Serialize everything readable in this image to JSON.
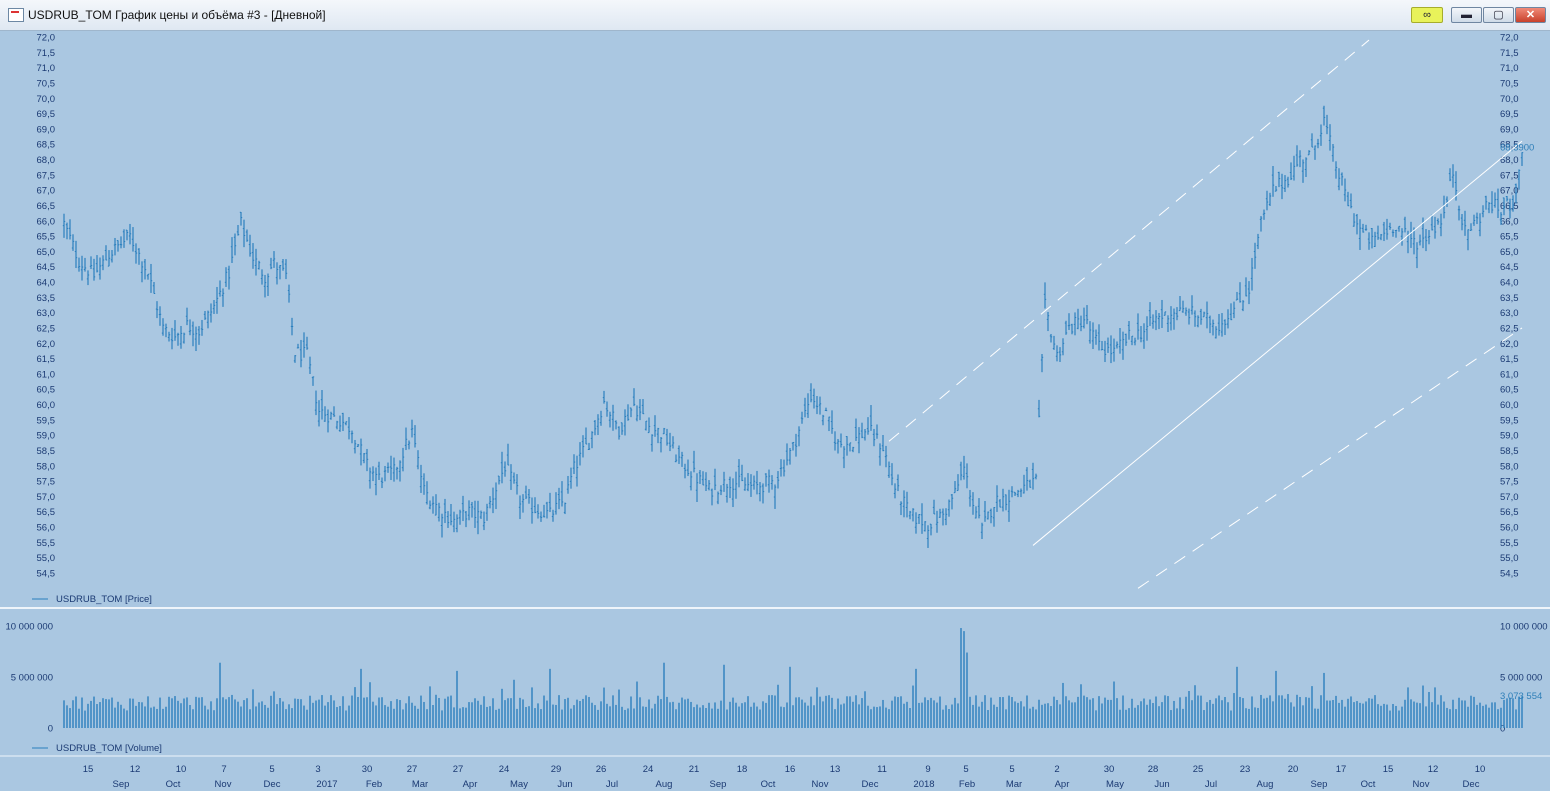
{
  "window": {
    "title": "USDRUB_TOM График цены и объёма #3 - [Дневной]",
    "icons": {
      "link": "link-icon",
      "minimize": "minimize-icon",
      "maximize": "maximize-icon",
      "close": "close-icon"
    }
  },
  "colors": {
    "background": "#aac7e1",
    "series": "#2b7fbd",
    "axis_text": "#1b3a73",
    "channel": "#ffffff"
  },
  "chart_data": [
    {
      "type": "bar",
      "subtype": "ohlc",
      "legend": "USDRUB_TOM [Price]",
      "legend_position": "bottom-left",
      "current_value_label": "68,3900",
      "ylim": [
        54.5,
        72.0
      ],
      "y_ticks": [
        "72,0",
        "71,5",
        "71,0",
        "70,5",
        "70,0",
        "69,5",
        "69,0",
        "68,5",
        "68,0",
        "67,5",
        "67,0",
        "66,5",
        "66,0",
        "65,5",
        "65,0",
        "64,5",
        "64,0",
        "63,5",
        "63,0",
        "62,5",
        "62,0",
        "61,5",
        "61,0",
        "60,5",
        "60,0",
        "59,5",
        "59,0",
        "58,5",
        "58,0",
        "57,5",
        "57,0",
        "56,5",
        "56,0",
        "55,5",
        "55,0",
        "54,5"
      ],
      "grid": false,
      "close_path": [
        [
          0,
          65.9
        ],
        [
          5,
          64.7
        ],
        [
          10,
          64.2
        ],
        [
          15,
          64.9
        ],
        [
          22,
          65.5
        ],
        [
          28,
          64.3
        ],
        [
          33,
          62.5
        ],
        [
          37,
          62.2
        ],
        [
          41,
          62.6
        ],
        [
          45,
          62.4
        ],
        [
          50,
          63.2
        ],
        [
          55,
          64.3
        ],
        [
          59,
          65.9
        ],
        [
          63,
          64.8
        ],
        [
          67,
          64.2
        ],
        [
          70,
          64.6
        ],
        [
          74,
          64.2
        ],
        [
          77,
          61.7
        ],
        [
          81,
          61.6
        ],
        [
          85,
          59.8
        ],
        [
          92,
          59.5
        ],
        [
          96,
          59.2
        ],
        [
          101,
          58.0
        ],
        [
          105,
          57.6
        ],
        [
          110,
          57.8
        ],
        [
          116,
          59.1
        ],
        [
          120,
          57.2
        ],
        [
          125,
          56.6
        ],
        [
          130,
          56.2
        ],
        [
          135,
          56.5
        ],
        [
          140,
          56.3
        ],
        [
          147,
          58.0
        ],
        [
          152,
          56.9
        ],
        [
          157,
          56.6
        ],
        [
          162,
          56.4
        ],
        [
          167,
          56.9
        ],
        [
          170,
          57.9
        ],
        [
          175,
          58.8
        ],
        [
          180,
          60.1
        ],
        [
          185,
          59.2
        ],
        [
          190,
          60.0
        ],
        [
          195,
          59.3
        ],
        [
          200,
          59.0
        ],
        [
          205,
          58.2
        ],
        [
          210,
          57.7
        ],
        [
          215,
          57.2
        ],
        [
          222,
          57.5
        ],
        [
          230,
          57.3
        ],
        [
          237,
          57.5
        ],
        [
          243,
          58.6
        ],
        [
          249,
          60.3
        ],
        [
          254,
          59.6
        ],
        [
          258,
          58.7
        ],
        [
          263,
          58.8
        ],
        [
          268,
          59.2
        ],
        [
          273,
          58.6
        ],
        [
          277,
          57.3
        ],
        [
          282,
          56.4
        ],
        [
          288,
          56.1
        ],
        [
          293,
          56.4
        ],
        [
          297,
          57.1
        ],
        [
          300,
          57.9
        ],
        [
          303,
          56.8
        ],
        [
          306,
          55.9
        ],
        [
          310,
          56.8
        ],
        [
          315,
          57.0
        ],
        [
          320,
          57.3
        ],
        [
          324,
          57.5
        ],
        [
          327,
          63.2
        ],
        [
          331,
          61.6
        ],
        [
          335,
          62.5
        ],
        [
          340,
          62.8
        ],
        [
          345,
          61.9
        ],
        [
          350,
          61.7
        ],
        [
          355,
          62.2
        ],
        [
          360,
          62.4
        ],
        [
          364,
          62.8
        ],
        [
          369,
          63.0
        ],
        [
          375,
          63.0
        ],
        [
          380,
          62.8
        ],
        [
          385,
          62.6
        ],
        [
          390,
          63.1
        ],
        [
          395,
          63.8
        ],
        [
          399,
          65.9
        ],
        [
          403,
          67.0
        ],
        [
          408,
          67.4
        ],
        [
          412,
          68.0
        ],
        [
          416,
          68.2
        ],
        [
          420,
          69.3
        ],
        [
          424,
          67.8
        ],
        [
          428,
          66.6
        ],
        [
          432,
          65.7
        ],
        [
          436,
          65.3
        ],
        [
          440,
          65.6
        ],
        [
          444,
          65.9
        ],
        [
          448,
          65.4
        ],
        [
          452,
          65.3
        ],
        [
          456,
          65.7
        ],
        [
          460,
          66.2
        ],
        [
          463,
          67.6
        ],
        [
          467,
          65.6
        ],
        [
          471,
          66.0
        ],
        [
          475,
          66.6
        ],
        [
          479,
          66.3
        ],
        [
          483,
          66.7
        ],
        [
          485,
          67.4
        ],
        [
          486,
          68.39
        ]
      ],
      "n_bars": 487
    },
    {
      "type": "bar",
      "legend": "USDRUB_TOM [Volume]",
      "legend_position": "bottom-left",
      "current_value_label": "3 073 554",
      "ylim": [
        0,
        10000000
      ],
      "y_ticks": [
        "10 000 000",
        "5 000 000",
        "0"
      ],
      "volume_base": 3100000,
      "volume_spikes": [
        [
          52,
          6400000
        ],
        [
          99,
          5800000
        ],
        [
          131,
          5600000
        ],
        [
          162,
          5800000
        ],
        [
          200,
          6400000
        ],
        [
          220,
          6200000
        ],
        [
          242,
          6000000
        ],
        [
          284,
          5800000
        ],
        [
          299,
          9800000
        ],
        [
          300,
          9500000
        ],
        [
          301,
          7400000
        ],
        [
          391,
          6000000
        ],
        [
          404,
          5600000
        ],
        [
          420,
          5400000
        ],
        [
          486,
          3073554
        ]
      ]
    }
  ],
  "x_axis": {
    "day_labels": [
      "15",
      "12",
      "10",
      "7",
      "5",
      "3",
      "30",
      "27",
      "27",
      "24",
      "29",
      "26",
      "24",
      "21",
      "18",
      "16",
      "13",
      "11",
      "9",
      "5",
      "5",
      "2",
      "30",
      "28",
      "25",
      "23",
      "20",
      "17",
      "15",
      "12",
      "10"
    ],
    "day_label_x": [
      88,
      135,
      181,
      224,
      272,
      318,
      367,
      412,
      458,
      504,
      556,
      601,
      648,
      694,
      742,
      790,
      835,
      882,
      928,
      966,
      1012,
      1057,
      1109,
      1153,
      1198,
      1245,
      1293,
      1341,
      1388,
      1433,
      1480
    ],
    "month_labels": [
      "Sep",
      "Oct",
      "Nov",
      "Dec",
      "2017",
      "Feb",
      "Mar",
      "Apr",
      "May",
      "Jun",
      "Jul",
      "Aug",
      "Sep",
      "Oct",
      "Nov",
      "Dec",
      "2018",
      "Feb",
      "Mar",
      "Apr",
      "May",
      "Jun",
      "Jul",
      "Aug",
      "Sep",
      "Oct",
      "Nov",
      "Dec"
    ],
    "month_label_x": [
      121,
      173,
      223,
      272,
      327,
      374,
      420,
      470,
      519,
      565,
      612,
      664,
      718,
      768,
      820,
      870,
      924,
      967,
      1014,
      1062,
      1115,
      1162,
      1211,
      1265,
      1319,
      1368,
      1421,
      1471
    ]
  },
  "channel_lines": [
    {
      "style": "solid",
      "from": [
        323,
        55.4
      ],
      "to": [
        486,
        68.6
      ]
    },
    {
      "style": "dashed",
      "from": [
        275,
        58.8
      ],
      "to": [
        435,
        71.9
      ]
    },
    {
      "style": "dashed",
      "from": [
        358,
        54.0
      ],
      "to": [
        486,
        62.5
      ]
    }
  ]
}
